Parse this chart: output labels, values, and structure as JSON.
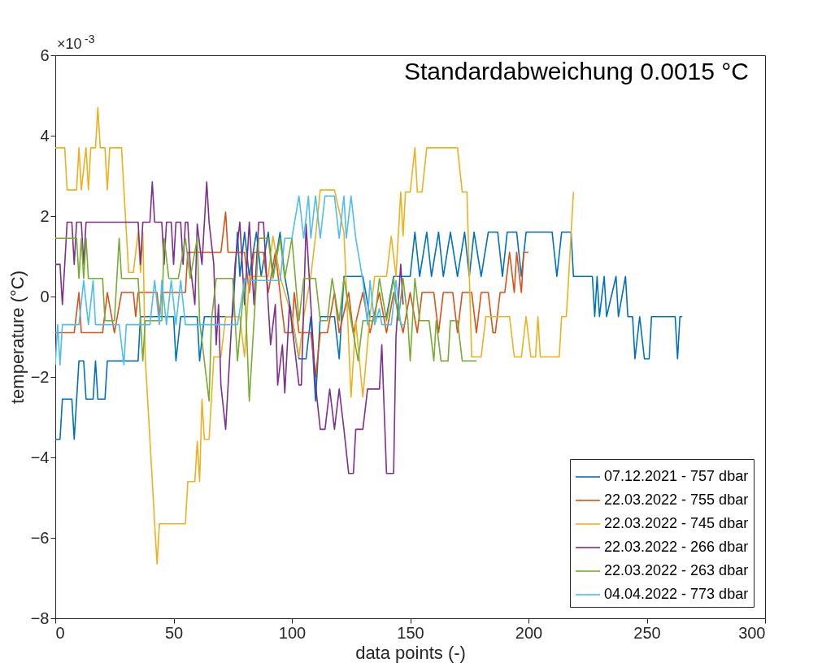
{
  "chart_data": {
    "type": "line",
    "xlabel": "data points (-)",
    "ylabel": "temperature (°C)",
    "annotations": [
      "Standardabweichung 0.0015 °C",
      "×10$^{-3}$"
    ],
    "xlim": [
      0,
      300
    ],
    "xticks": [
      0,
      50,
      100,
      150,
      200,
      250,
      300
    ],
    "ylim": [
      -8,
      6
    ],
    "yticks": [
      -8,
      -6,
      -4,
      -2,
      0,
      2,
      4,
      6
    ],
    "grid": false,
    "legend": "bottom right",
    "line_style": "solid",
    "marker": "none",
    "series": [
      {
        "name": "07.12.2021 - 757 dbar",
        "color": "#0072bd",
        "x": [
          0,
          2,
          3,
          7,
          8,
          10,
          12,
          13,
          16,
          17,
          18,
          21,
          22,
          35,
          36,
          50,
          51,
          53,
          60,
          61,
          63,
          75,
          77,
          78,
          80,
          82,
          85,
          87,
          90,
          92,
          95,
          97,
          100,
          103,
          106,
          108,
          110,
          112,
          118,
          120,
          122,
          130,
          133,
          140,
          143,
          150,
          152,
          154,
          157,
          159,
          162,
          164,
          167,
          170,
          173,
          175,
          177,
          180,
          183,
          187,
          189,
          191,
          195,
          197,
          199,
          210,
          212,
          214,
          218,
          219,
          227,
          228,
          229,
          230,
          232,
          233,
          237,
          238,
          241,
          242,
          244,
          245,
          247,
          249,
          251,
          252,
          262,
          263,
          264,
          265
        ],
        "values": [
          -3.55,
          -3.55,
          -2.55,
          -2.55,
          -3.55,
          -1.6,
          -1.6,
          -2.55,
          -2.55,
          -1.6,
          -2.55,
          -2.55,
          -1.6,
          -1.6,
          -0.5,
          -0.5,
          -1.6,
          -0.5,
          -0.5,
          -1.6,
          -0.5,
          -0.5,
          1.6,
          0.5,
          1.6,
          0.5,
          1.6,
          0.5,
          1.6,
          0.5,
          1.6,
          0.5,
          -0.5,
          -1.55,
          -1.55,
          -0.5,
          -2.6,
          -0.5,
          -0.5,
          -1.55,
          0.5,
          0.5,
          -0.5,
          -0.5,
          0.5,
          0.5,
          1.6,
          0.5,
          1.6,
          0.5,
          1.6,
          0.5,
          1.6,
          0.5,
          1.6,
          0.5,
          1.6,
          0.5,
          1.6,
          1.6,
          0.5,
          1.6,
          1.6,
          0.5,
          1.6,
          1.6,
          0.5,
          1.6,
          1.6,
          0.5,
          0.5,
          -0.5,
          0.5,
          -0.5,
          0.5,
          -0.5,
          0.5,
          -0.5,
          0.5,
          -0.5,
          -0.5,
          -1.55,
          -0.5,
          -1.55,
          -1.55,
          -0.5,
          -0.5,
          -1.55,
          -0.5,
          -0.5
        ]
      },
      {
        "name": "22.03.2022 - 755 dbar",
        "color": "#d95319",
        "x": [
          0,
          8,
          10,
          11,
          20,
          22,
          25,
          28,
          33,
          34,
          35,
          40,
          43,
          44,
          45,
          55,
          56,
          60,
          70,
          72,
          73,
          80,
          82,
          84,
          88,
          90,
          93,
          95,
          97,
          100,
          101,
          103,
          108,
          110,
          112,
          115,
          118,
          120,
          124,
          126,
          130,
          133,
          137,
          140,
          143,
          147,
          150,
          153,
          155,
          160,
          162,
          164,
          168,
          170,
          172,
          176,
          178,
          180,
          183,
          185,
          186,
          188,
          190,
          192,
          194,
          195,
          197,
          198,
          200
        ],
        "values": [
          -0.9,
          -0.9,
          0.1,
          -0.9,
          -0.9,
          0.1,
          -0.9,
          0.1,
          0.1,
          -0.5,
          0.1,
          0.1,
          0.1,
          -0.5,
          0.1,
          0.1,
          1.1,
          1.1,
          1.1,
          2.1,
          1.1,
          1.1,
          0.1,
          1.1,
          1.1,
          0.1,
          1.1,
          0.1,
          -0.9,
          -0.9,
          0.1,
          -0.9,
          -0.9,
          -2.0,
          -0.9,
          -0.9,
          0.1,
          -0.9,
          0.1,
          -0.9,
          0.1,
          -0.9,
          0.1,
          -0.9,
          0.1,
          -0.9,
          0.1,
          -0.9,
          0.1,
          0.1,
          -0.9,
          0.1,
          0.1,
          -0.9,
          0.1,
          0.1,
          -0.9,
          0.1,
          0.1,
          -0.9,
          -0.9,
          0.1,
          0.1,
          1.1,
          0.1,
          1.1,
          0.1,
          1.1,
          1.1
        ]
      },
      {
        "name": "22.03.2022 - 745 dbar",
        "color": "#edb120",
        "x": [
          0,
          4,
          5,
          9,
          10,
          11,
          13,
          14,
          15,
          17,
          18,
          19,
          21,
          22,
          23,
          28,
          31,
          33,
          35,
          36,
          37,
          38,
          40,
          42,
          43,
          44,
          55,
          56,
          59,
          60,
          61,
          62,
          63,
          65,
          66,
          67,
          70,
          72,
          78,
          80,
          82,
          90,
          92,
          95,
          100,
          103,
          105,
          108,
          110,
          112,
          118,
          122,
          125,
          127,
          130,
          133,
          135,
          140,
          142,
          144,
          146,
          147,
          148,
          150,
          152,
          153,
          155,
          157,
          165,
          168,
          170,
          172,
          174,
          175,
          176,
          180,
          182,
          192,
          194,
          197,
          199,
          201,
          203,
          204,
          205,
          213,
          214,
          216,
          217,
          219
        ],
        "values": [
          3.7,
          3.7,
          2.65,
          2.65,
          3.7,
          2.65,
          3.7,
          2.65,
          3.7,
          3.7,
          4.7,
          3.7,
          3.7,
          2.65,
          3.7,
          3.7,
          0.6,
          0.6,
          1.6,
          0.6,
          1.6,
          -1.5,
          -3.55,
          -5.65,
          -6.65,
          -5.65,
          -5.65,
          -4.6,
          -4.6,
          -3.6,
          -4.6,
          -2.55,
          -3.55,
          -3.55,
          -2.55,
          -1.5,
          -1.5,
          -0.5,
          -0.5,
          -1.5,
          0.5,
          0.5,
          1.5,
          0.5,
          -0.5,
          -1.5,
          -0.5,
          0.5,
          1.5,
          2.65,
          2.65,
          1.6,
          -2.5,
          -0.6,
          -2.5,
          -0.5,
          0.5,
          0.5,
          1.5,
          0.5,
          2.6,
          1.5,
          2.6,
          2.6,
          3.7,
          2.6,
          2.6,
          3.7,
          3.7,
          3.7,
          3.7,
          2.6,
          2.6,
          0.5,
          -1.5,
          -1.5,
          -0.5,
          -0.5,
          -1.5,
          -1.5,
          -0.5,
          -1.5,
          -1.5,
          -0.5,
          -1.5,
          -1.5,
          -0.5,
          -0.5,
          0.5,
          2.6
        ]
      },
      {
        "name": "22.03.2022 - 266 dbar",
        "color": "#7e2f8e",
        "x": [
          0,
          2,
          3,
          4,
          5,
          7,
          8,
          9,
          11,
          12,
          13,
          35,
          36,
          37,
          40,
          41,
          42,
          45,
          46,
          47,
          49,
          50,
          51,
          53,
          54,
          55,
          56,
          57,
          59,
          60,
          62,
          64,
          65,
          67,
          68,
          69,
          70,
          72,
          74,
          76,
          78,
          80,
          82,
          84,
          86,
          88,
          90,
          91,
          93,
          94,
          96,
          97,
          99,
          101,
          103,
          104,
          106,
          108,
          110,
          112,
          114,
          116,
          118,
          120,
          122,
          124,
          126,
          127,
          130,
          132,
          137,
          138,
          140,
          143,
          144,
          146,
          147
        ],
        "values": [
          0.8,
          0.8,
          -0.2,
          0.8,
          1.85,
          1.85,
          0.8,
          1.85,
          1.85,
          0.8,
          1.85,
          1.85,
          0.8,
          1.85,
          1.85,
          2.85,
          1.85,
          1.85,
          0.8,
          1.85,
          1.85,
          0.8,
          1.85,
          1.85,
          0.8,
          1.85,
          1.85,
          0.8,
          -0.2,
          1.8,
          0.8,
          2.85,
          1.85,
          0.8,
          -1.2,
          -0.2,
          -2.2,
          -3.3,
          -1.2,
          0.8,
          1.85,
          -0.2,
          1.85,
          -0.2,
          1.85,
          1.85,
          -0.2,
          -1.2,
          -0.2,
          -2.2,
          -1.2,
          -2.4,
          -0.2,
          -1.2,
          -2.2,
          -2.2,
          1.8,
          -0.2,
          -2.2,
          -3.3,
          -3.3,
          -2.3,
          -3.3,
          -2.3,
          -3.3,
          -4.4,
          -4.4,
          -3.3,
          -3.3,
          -2.3,
          -2.3,
          -1.2,
          -4.4,
          -4.4,
          -1.0,
          0.8,
          -0.2
        ]
      },
      {
        "name": "22.03.2022 - 263 dbar",
        "color": "#77ac30",
        "x": [
          0,
          9,
          10,
          11,
          12,
          13,
          14,
          20,
          21,
          25,
          27,
          28,
          35,
          37,
          38,
          45,
          46,
          48,
          52,
          55,
          57,
          60,
          61,
          63,
          65,
          66,
          68,
          75,
          77,
          80,
          82,
          84,
          86,
          90,
          92,
          95,
          97,
          100,
          103,
          105,
          110,
          112,
          115,
          117,
          120,
          122,
          125,
          128,
          130,
          135,
          137,
          140,
          143,
          145,
          147,
          149,
          150,
          152,
          154,
          158,
          160,
          161,
          163,
          166,
          167,
          170,
          172,
          177,
          178
        ],
        "values": [
          1.45,
          1.45,
          0.45,
          1.45,
          0.45,
          1.45,
          0.45,
          0.45,
          -0.6,
          -0.6,
          1.45,
          0.45,
          0.45,
          -1.6,
          -0.6,
          -0.6,
          1.45,
          0.45,
          0.45,
          1.45,
          0.45,
          1.45,
          -0.6,
          -1.6,
          -2.6,
          -0.6,
          0.45,
          0.45,
          -1.6,
          0.45,
          -2.6,
          -0.6,
          1.45,
          1.45,
          0.45,
          1.45,
          0.45,
          1.45,
          -0.6,
          0.45,
          0.45,
          -0.6,
          -0.6,
          0.45,
          -0.6,
          0.45,
          -0.6,
          -1.6,
          -0.6,
          -0.6,
          0.45,
          -0.6,
          0.45,
          -0.6,
          0.45,
          -0.6,
          -1.6,
          0.45,
          -0.6,
          -0.6,
          -1.6,
          -0.6,
          -1.6,
          -1.6,
          -0.6,
          -0.6,
          -1.6,
          -1.6,
          -1.6
        ]
      },
      {
        "name": "04.04.2022 - 773 dbar",
        "color": "#4dbeee",
        "x": [
          0,
          1,
          2,
          3,
          10,
          12,
          14,
          16,
          17,
          27,
          29,
          30,
          40,
          42,
          44,
          45,
          47,
          49,
          51,
          53,
          55,
          77,
          80,
          95,
          97,
          100,
          103,
          105,
          107,
          108,
          110,
          112,
          114,
          118,
          120,
          122,
          123,
          125,
          127,
          130,
          132,
          133,
          135,
          137,
          138,
          142,
          144,
          146,
          148
        ],
        "values": [
          -1.7,
          -0.7,
          -1.7,
          -0.7,
          -0.7,
          0.4,
          -0.7,
          0.4,
          -0.7,
          -0.7,
          -1.7,
          -0.7,
          -0.7,
          0.4,
          -0.7,
          0.4,
          -0.7,
          0.4,
          -0.7,
          0.4,
          -0.7,
          -0.7,
          0.4,
          0.4,
          1.45,
          1.45,
          2.5,
          1.45,
          2.5,
          1.45,
          2.5,
          1.45,
          2.5,
          2.5,
          1.45,
          2.5,
          1.45,
          2.5,
          1.45,
          0.4,
          -0.7,
          0.4,
          -0.7,
          -0.3,
          -0.7,
          -0.7,
          0.4,
          -0.7,
          -0.7
        ]
      }
    ]
  }
}
